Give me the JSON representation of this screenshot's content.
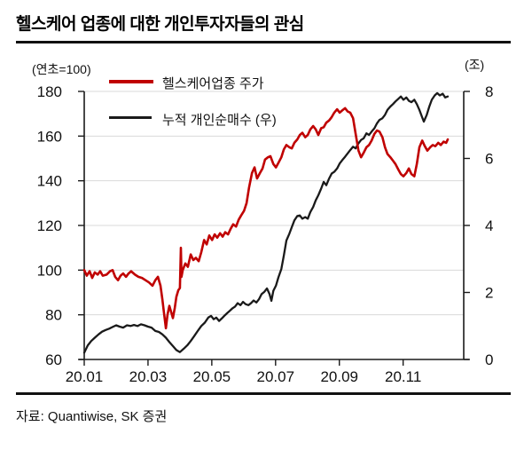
{
  "page": {
    "title": "헬스케어 업종에 대한 개인투자자들의 관심",
    "source": "자료: Quantiwise, SK 증권"
  },
  "chart_data": {
    "type": "line",
    "title": "헬스케어 업종에 대한 개인투자자들의 관심",
    "source": "자료: Quantiwise, SK 증권",
    "grid": "horizontal",
    "legend_position": "top-left-inside",
    "left_axis": {
      "label": "(연초=100)",
      "min": 60,
      "max": 180,
      "ticks": [
        60,
        80,
        100,
        120,
        140,
        160,
        180
      ]
    },
    "right_axis": {
      "label": "(조)",
      "min": 0,
      "max": 8,
      "ticks": [
        0,
        2,
        4,
        6,
        8
      ]
    },
    "x_axis": {
      "tick_labels": [
        "20.01",
        "20.03",
        "20.05",
        "20.07",
        "20.09",
        "20.11"
      ],
      "tick_months": [
        0,
        2,
        4,
        6,
        8,
        10
      ],
      "domain": [
        0,
        11.9
      ]
    },
    "series": [
      {
        "name": "헬스케어업종 주가",
        "axis": "left",
        "color": "#c00000",
        "x": [
          0,
          0.08,
          0.17,
          0.25,
          0.33,
          0.42,
          0.5,
          0.58,
          0.7,
          0.81,
          0.89,
          0.97,
          1.06,
          1.14,
          1.22,
          1.31,
          1.39,
          1.47,
          1.59,
          1.7,
          1.81,
          1.92,
          2.03,
          2.14,
          2.23,
          2.31,
          2.39,
          2.45,
          2.5,
          2.56,
          2.61,
          2.67,
          2.73,
          2.78,
          2.84,
          2.89,
          2.95,
          3.0,
          3.03,
          3.05,
          3.09,
          3.17,
          3.25,
          3.34,
          3.42,
          3.5,
          3.59,
          3.67,
          3.76,
          3.84,
          3.92,
          4.01,
          4.09,
          4.17,
          4.26,
          4.34,
          4.42,
          4.51,
          4.59,
          4.67,
          4.76,
          4.84,
          4.92,
          5.01,
          5.09,
          5.17,
          5.26,
          5.34,
          5.42,
          5.51,
          5.59,
          5.67,
          5.76,
          5.84,
          5.93,
          6.01,
          6.09,
          6.18,
          6.26,
          6.34,
          6.43,
          6.51,
          6.59,
          6.68,
          6.76,
          6.84,
          6.93,
          7.01,
          7.09,
          7.18,
          7.26,
          7.34,
          7.43,
          7.51,
          7.59,
          7.68,
          7.76,
          7.84,
          7.93,
          8.01,
          8.09,
          8.18,
          8.26,
          8.34,
          8.43,
          8.51,
          8.6,
          8.68,
          8.76,
          8.85,
          8.93,
          9.01,
          9.1,
          9.18,
          9.26,
          9.35,
          9.43,
          9.51,
          9.6,
          9.68,
          9.76,
          9.85,
          9.93,
          10.01,
          10.1,
          10.18,
          10.26,
          10.35,
          10.43,
          10.51,
          10.6,
          10.68,
          10.76,
          10.85,
          10.93,
          11.01,
          11.1,
          11.18,
          11.27,
          11.35,
          11.4
        ],
        "y": [
          100,
          97.5,
          99.5,
          96.5,
          99,
          98,
          99.5,
          97.5,
          98,
          99.5,
          100,
          97,
          95.5,
          97.5,
          98.5,
          97,
          98.5,
          99.5,
          98,
          97,
          96.5,
          95.5,
          94.5,
          93,
          95.5,
          97,
          93,
          87,
          81,
          74,
          80,
          84,
          81,
          78.5,
          83,
          88,
          91,
          92,
          110,
          97,
          100,
          103,
          101.5,
          107,
          104.5,
          105.5,
          104,
          108,
          113.5,
          111.5,
          115.5,
          113.5,
          116,
          114.5,
          116.5,
          115,
          117,
          116,
          118.5,
          120.5,
          119.5,
          122.5,
          124.5,
          126.5,
          130,
          137,
          143.5,
          146,
          141,
          143.5,
          145.5,
          149.5,
          150.5,
          151,
          147.5,
          146,
          148,
          150.5,
          154,
          156,
          155,
          154.5,
          157,
          158.5,
          160.5,
          161.5,
          159.5,
          160.5,
          163,
          164.5,
          163,
          160.5,
          163.5,
          164,
          166,
          167,
          168.5,
          170.5,
          172,
          170.5,
          171.5,
          172.5,
          171,
          170.5,
          168,
          161,
          153.5,
          150.5,
          152.5,
          155,
          156,
          158,
          161,
          162.5,
          162,
          159.5,
          155,
          152,
          150.5,
          149,
          147.5,
          145,
          143,
          142,
          143.5,
          145.5,
          143,
          142,
          147.5,
          155,
          158,
          155.5,
          153.5,
          155,
          156,
          155.5,
          157,
          156,
          157.5,
          157,
          158.5
        ]
      },
      {
        "name": "누적 개인순매수 (우)",
        "axis": "right",
        "color": "#1a1a1a",
        "x": [
          0,
          0.11,
          0.22,
          0.33,
          0.45,
          0.56,
          0.67,
          0.78,
          0.89,
          1.0,
          1.11,
          1.22,
          1.34,
          1.45,
          1.56,
          1.67,
          1.78,
          1.89,
          2.0,
          2.11,
          2.23,
          2.34,
          2.45,
          2.56,
          2.67,
          2.78,
          2.89,
          3.0,
          3.12,
          3.23,
          3.34,
          3.45,
          3.56,
          3.67,
          3.78,
          3.89,
          3.98,
          4.06,
          4.14,
          4.23,
          4.31,
          4.39,
          4.48,
          4.56,
          4.64,
          4.73,
          4.81,
          4.9,
          4.98,
          5.06,
          5.15,
          5.23,
          5.31,
          5.4,
          5.48,
          5.56,
          5.65,
          5.73,
          5.81,
          5.87,
          5.93,
          6.01,
          6.09,
          6.18,
          6.26,
          6.34,
          6.43,
          6.51,
          6.59,
          6.68,
          6.76,
          6.84,
          6.93,
          7.01,
          7.09,
          7.18,
          7.26,
          7.34,
          7.43,
          7.51,
          7.59,
          7.68,
          7.76,
          7.84,
          7.93,
          8.01,
          8.09,
          8.18,
          8.26,
          8.34,
          8.43,
          8.51,
          8.6,
          8.68,
          8.76,
          8.85,
          8.93,
          9.01,
          9.1,
          9.18,
          9.26,
          9.35,
          9.43,
          9.51,
          9.6,
          9.68,
          9.76,
          9.85,
          9.93,
          10.01,
          10.1,
          10.18,
          10.26,
          10.35,
          10.43,
          10.51,
          10.6,
          10.65,
          10.74,
          10.82,
          10.9,
          10.99,
          11.07,
          11.15,
          11.24,
          11.32,
          11.4
        ],
        "y": [
          0.2,
          0.42,
          0.55,
          0.65,
          0.75,
          0.83,
          0.88,
          0.92,
          0.97,
          1.02,
          0.98,
          0.95,
          1.02,
          1.0,
          1.03,
          1.0,
          1.05,
          1.02,
          0.98,
          0.95,
          0.85,
          0.82,
          0.75,
          0.65,
          0.52,
          0.4,
          0.28,
          0.22,
          0.32,
          0.42,
          0.55,
          0.7,
          0.85,
          1.0,
          1.1,
          1.25,
          1.3,
          1.2,
          1.25,
          1.15,
          1.22,
          1.3,
          1.38,
          1.45,
          1.52,
          1.58,
          1.68,
          1.62,
          1.72,
          1.65,
          1.62,
          1.68,
          1.76,
          1.7,
          1.8,
          1.95,
          2.02,
          2.12,
          1.95,
          1.75,
          2.05,
          2.2,
          2.45,
          2.7,
          3.1,
          3.55,
          3.75,
          3.95,
          4.15,
          4.28,
          4.3,
          4.2,
          4.25,
          4.2,
          4.4,
          4.55,
          4.75,
          4.9,
          5.1,
          5.3,
          5.2,
          5.4,
          5.55,
          5.6,
          5.7,
          5.85,
          5.95,
          6.05,
          6.15,
          6.25,
          6.35,
          6.3,
          6.45,
          6.55,
          6.6,
          6.75,
          6.7,
          6.8,
          6.9,
          7.05,
          7.15,
          7.2,
          7.3,
          7.45,
          7.55,
          7.62,
          7.7,
          7.78,
          7.85,
          7.75,
          7.82,
          7.72,
          7.68,
          7.75,
          7.62,
          7.45,
          7.22,
          7.1,
          7.3,
          7.55,
          7.75,
          7.88,
          7.95,
          7.88,
          7.93,
          7.82,
          7.85
        ]
      }
    ]
  }
}
